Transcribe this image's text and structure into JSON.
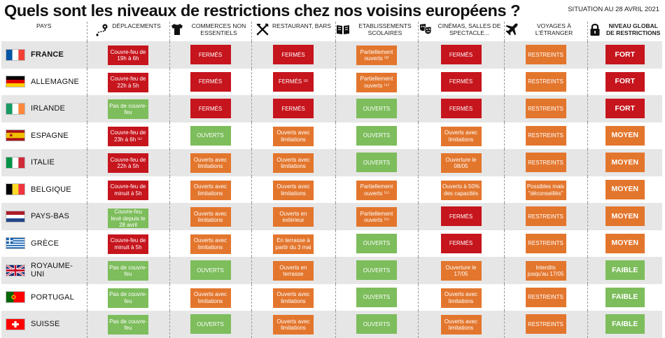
{
  "title": "Quels sont les niveaux de restrictions chez nos voisins européens ?",
  "situation": "SITUATION AU 28 AVRIL 2021",
  "colors": {
    "red": "#c6151d",
    "orange": "#e3762d",
    "green": "#7dbd5c",
    "row_shade": "#e6e6e6"
  },
  "headers": [
    {
      "label": "PAYS",
      "icon": ""
    },
    {
      "label": "DÉPLACEMENTS",
      "icon": "route-pin-icon"
    },
    {
      "label": "COMMERCES NON ESSENTIELS",
      "icon": "tshirt-icon"
    },
    {
      "label": "RESTAURANT, BARS",
      "icon": "fork-knife-icon"
    },
    {
      "label": "ETABLISSEMENTS SCOLAIRES",
      "icon": "open-book-icon"
    },
    {
      "label": "CINÉMAS, SALLES DE SPECTACLE...",
      "icon": "theater-masks-icon"
    },
    {
      "label": "VOYAGES À L'ÉTRANGER",
      "icon": "airplane-icon"
    },
    {
      "label": "NIVEAU GLOBAL DE RESTRICTIONS",
      "icon": "padlock-icon"
    }
  ],
  "rows": [
    {
      "country": "FRANCE",
      "flag": "fr",
      "bold": true,
      "cells": [
        {
          "text": "Couvre-feu de 19h à 6h",
          "color": "red"
        },
        {
          "text": "FERMÉS",
          "color": "red"
        },
        {
          "text": "FERMÉS",
          "color": "red"
        },
        {
          "text": "Partiellement ouverts ⁽³⁾",
          "color": "orange"
        },
        {
          "text": "FERMÉS",
          "color": "red"
        },
        {
          "text": "RESTREINTS",
          "color": "orange"
        },
        {
          "text": "FORT",
          "color": "red"
        }
      ]
    },
    {
      "country": "ALLEMAGNE",
      "flag": "de",
      "bold": false,
      "cells": [
        {
          "text": "Couvre-feu de 22h à 5h",
          "color": "red"
        },
        {
          "text": "FERMÉS",
          "color": "red"
        },
        {
          "text": "FERMÉS ⁽²⁾",
          "color": "red"
        },
        {
          "text": "Partiellement ouverts ⁽⁴⁾",
          "color": "orange"
        },
        {
          "text": "FERMÉS",
          "color": "red"
        },
        {
          "text": "RESTREINTS",
          "color": "orange"
        },
        {
          "text": "FORT",
          "color": "red"
        }
      ]
    },
    {
      "country": "IRLANDE",
      "flag": "ie",
      "bold": false,
      "cells": [
        {
          "text": "Pas de couvre-feu",
          "color": "green"
        },
        {
          "text": "FERMÉS",
          "color": "red"
        },
        {
          "text": "FERMÉS",
          "color": "red"
        },
        {
          "text": "OUVERTS",
          "color": "green"
        },
        {
          "text": "FERMÉS",
          "color": "red"
        },
        {
          "text": "RESTREINTS",
          "color": "orange"
        },
        {
          "text": "FORT",
          "color": "red"
        }
      ]
    },
    {
      "country": "ESPAGNE",
      "flag": "es",
      "bold": false,
      "cells": [
        {
          "text": "Couvre-feu de 23h à 6h ⁽¹⁾",
          "color": "red"
        },
        {
          "text": "OUVERTS",
          "color": "green"
        },
        {
          "text": "Ouverts avec limitations",
          "color": "orange"
        },
        {
          "text": "OUVERTS",
          "color": "green"
        },
        {
          "text": "Ouverts avec limitations",
          "color": "orange"
        },
        {
          "text": "RESTREINTS",
          "color": "orange"
        },
        {
          "text": "MOYEN",
          "color": "orange"
        }
      ]
    },
    {
      "country": "ITALIE",
      "flag": "it",
      "bold": false,
      "cells": [
        {
          "text": "Couvre-feu de 22h à 5h",
          "color": "red"
        },
        {
          "text": "Ouverts avec limitations",
          "color": "orange"
        },
        {
          "text": "Ouverts avec limitations",
          "color": "orange"
        },
        {
          "text": "OUVERTS",
          "color": "green"
        },
        {
          "text": "Ouverture le 08/05",
          "color": "orange"
        },
        {
          "text": "RESTREINTS",
          "color": "orange"
        },
        {
          "text": "MOYEN",
          "color": "orange"
        }
      ]
    },
    {
      "country": "BELGIQUE",
      "flag": "be",
      "bold": false,
      "cells": [
        {
          "text": "Couvre-feu de minuit à 5h",
          "color": "red"
        },
        {
          "text": "Ouverts avec limitations",
          "color": "orange"
        },
        {
          "text": "Ouverts avec limitations",
          "color": "orange"
        },
        {
          "text": "Partiellement ouverts ⁽⁵⁾",
          "color": "orange"
        },
        {
          "text": "Ouverts à 50% des capacités",
          "color": "orange"
        },
        {
          "text": "Possibles mais \"déconseillés\"",
          "color": "orange"
        },
        {
          "text": "MOYEN",
          "color": "orange"
        }
      ]
    },
    {
      "country": "PAYS-BAS",
      "flag": "nl",
      "bold": false,
      "cells": [
        {
          "text": "Couvre-feu levé depuis le 28 avril",
          "color": "green"
        },
        {
          "text": "Ouverts avec limitations",
          "color": "orange"
        },
        {
          "text": "Ouverts en extérieur",
          "color": "orange"
        },
        {
          "text": "Partiellement ouverts ⁽⁵⁾",
          "color": "orange"
        },
        {
          "text": "FERMÉS",
          "color": "red"
        },
        {
          "text": "RESTREINTS",
          "color": "orange"
        },
        {
          "text": "MOYEN",
          "color": "orange"
        }
      ]
    },
    {
      "country": "GRÈCE",
      "flag": "gr",
      "bold": false,
      "cells": [
        {
          "text": "Couvre-feu de minuit à 5h",
          "color": "red"
        },
        {
          "text": "Ouverts avec limitations",
          "color": "orange"
        },
        {
          "text": "En terrasse à partir du 3 mai",
          "color": "orange"
        },
        {
          "text": "OUVERTS",
          "color": "green"
        },
        {
          "text": "FERMÉS",
          "color": "red"
        },
        {
          "text": "RESTREINTS",
          "color": "orange"
        },
        {
          "text": "MOYEN",
          "color": "orange"
        }
      ]
    },
    {
      "country": "ROYAUME-UNI",
      "flag": "gb",
      "bold": false,
      "cells": [
        {
          "text": "Pas de couvre-feu",
          "color": "green"
        },
        {
          "text": "OUVERTS",
          "color": "green"
        },
        {
          "text": "Ouverts en terrasse",
          "color": "orange"
        },
        {
          "text": "OUVERTS",
          "color": "green"
        },
        {
          "text": "Ouverture le 17/05",
          "color": "orange"
        },
        {
          "text": "Interdits jusqu'au 17/05",
          "color": "orange"
        },
        {
          "text": "FAIBLE",
          "color": "green"
        }
      ]
    },
    {
      "country": "PORTUGAL",
      "flag": "pt",
      "bold": false,
      "cells": [
        {
          "text": "Pas de couvre-feu",
          "color": "green"
        },
        {
          "text": "Ouverts avec limitations",
          "color": "orange"
        },
        {
          "text": "Ouverts avec limitations",
          "color": "orange"
        },
        {
          "text": "OUVERTS",
          "color": "green"
        },
        {
          "text": "Ouverts avec limitations",
          "color": "orange"
        },
        {
          "text": "RESTREINTS",
          "color": "orange"
        },
        {
          "text": "FAIBLE",
          "color": "green"
        }
      ]
    },
    {
      "country": "SUISSE",
      "flag": "ch",
      "bold": false,
      "cells": [
        {
          "text": "Pas de couvre-feu",
          "color": "green"
        },
        {
          "text": "OUVERTS",
          "color": "green"
        },
        {
          "text": "Ouverts avec limitations",
          "color": "orange"
        },
        {
          "text": "OUVERTS",
          "color": "green"
        },
        {
          "text": "Ouverts avec limitations",
          "color": "orange"
        },
        {
          "text": "RESTREINTS",
          "color": "orange"
        },
        {
          "text": "FAIBLE",
          "color": "green"
        }
      ]
    }
  ]
}
